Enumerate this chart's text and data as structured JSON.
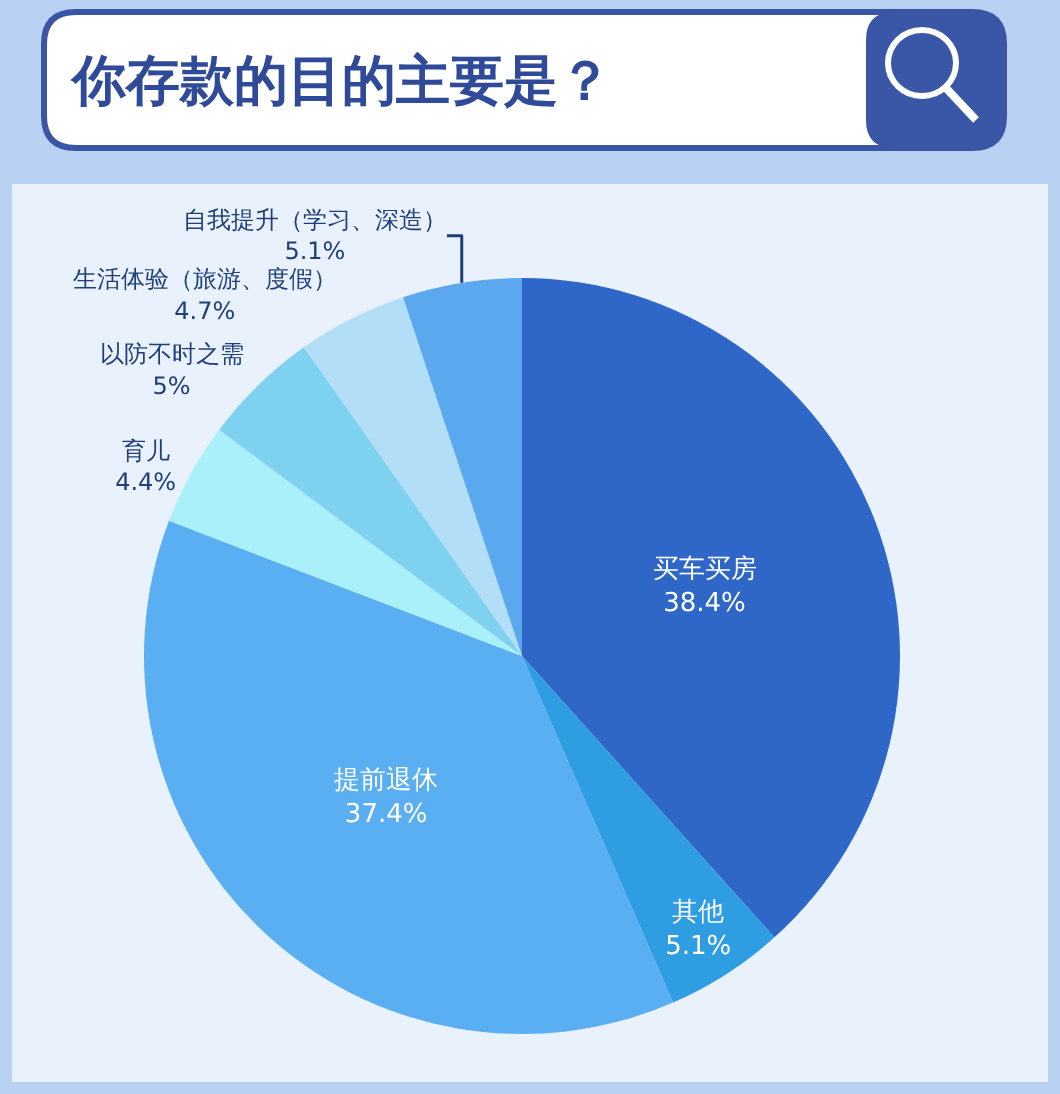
{
  "chart_data": {
    "type": "pie",
    "title": "你存款的目的主要是？",
    "categories": [
      "买车买房",
      "其他",
      "提前退休",
      "育儿",
      "以防不时之需",
      "生活体验（旅游、度假）",
      "自我提升（学习、深造）"
    ],
    "values": [
      38.4,
      5.1,
      37.4,
      4.4,
      5,
      4.7,
      5.1
    ],
    "colors": [
      "#2e67c8",
      "#2f9de2",
      "#5aaef2",
      "#a9f0fb",
      "#7fd1f0",
      "#b2dff7",
      "#5ba8ef"
    ],
    "value_labels": [
      "38.4%",
      "5.1%",
      "37.4%",
      "4.4%",
      "5%",
      "4.7%",
      "5.1%"
    ]
  }
}
